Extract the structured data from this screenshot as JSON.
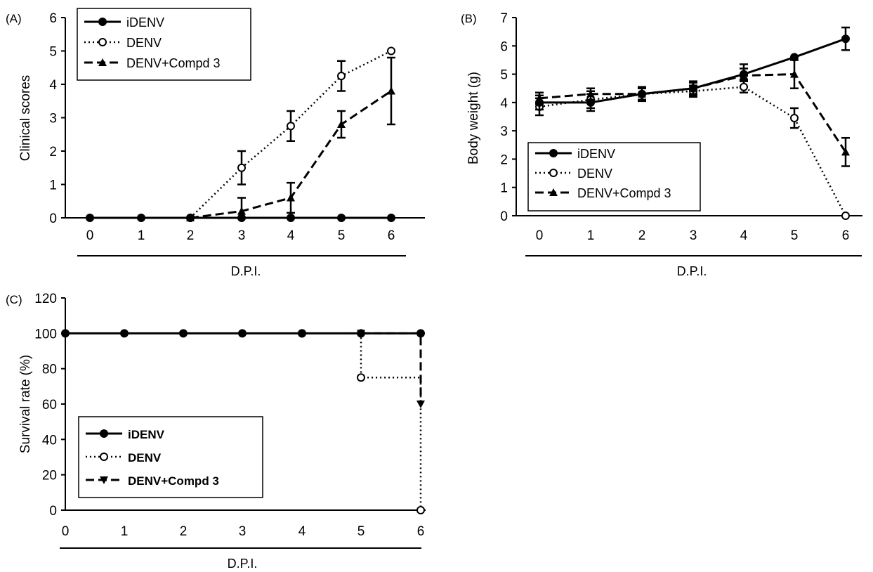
{
  "chart_data": [
    {
      "panel_label": "(A)",
      "type": "line",
      "ylabel": "Clinical scores",
      "xlabel": "D.P.I.",
      "ylim": [
        0,
        6
      ],
      "yticks": [
        "0",
        "1",
        "2",
        "3",
        "4",
        "5",
        "6"
      ],
      "x": [
        0,
        1,
        2,
        3,
        4,
        5,
        6
      ],
      "xticks": [
        "0",
        "1",
        "2",
        "3",
        "4",
        "5",
        "6"
      ],
      "legend_position": "top-left",
      "series": [
        {
          "name": "iDENV",
          "style": "solid",
          "marker": "filled-circle",
          "x": [
            0,
            1,
            2,
            3,
            4,
            5,
            6
          ],
          "values": [
            0,
            0,
            0,
            0,
            0,
            0,
            0
          ],
          "errors": [
            0,
            0,
            0,
            0,
            0,
            0,
            0
          ]
        },
        {
          "name": "DENV",
          "style": "dotted",
          "marker": "open-circle",
          "x": [
            2,
            3,
            4,
            5,
            6
          ],
          "values": [
            0,
            1.5,
            2.75,
            4.25,
            5.0
          ],
          "errors": [
            0,
            0.5,
            0.45,
            0.45,
            0
          ]
        },
        {
          "name": "DENV+Compd 3",
          "style": "dashed",
          "marker": "filled-triangle",
          "x": [
            2,
            3,
            4,
            5,
            6
          ],
          "values": [
            0,
            0.2,
            0.6,
            2.8,
            3.8
          ],
          "errors": [
            0,
            0.4,
            0.45,
            0.4,
            1.0
          ]
        }
      ]
    },
    {
      "panel_label": "(B)",
      "type": "line",
      "ylabel": "Body weight (g)",
      "xlabel": "D.P.I.",
      "ylim": [
        0,
        7
      ],
      "yticks": [
        "0",
        "1",
        "2",
        "3",
        "4",
        "5",
        "6",
        "7"
      ],
      "x": [
        0,
        1,
        2,
        3,
        4,
        5,
        6
      ],
      "xticks": [
        "0",
        "1",
        "2",
        "3",
        "4",
        "5",
        "6"
      ],
      "legend_position": "bottom-left",
      "series": [
        {
          "name": "iDENV",
          "style": "solid",
          "marker": "filled-circle",
          "x": [
            0,
            1,
            2,
            3,
            4,
            5,
            6
          ],
          "values": [
            4.0,
            4.0,
            4.3,
            4.5,
            5.0,
            5.6,
            6.25
          ],
          "errors": [
            0.25,
            0.3,
            0.2,
            0.2,
            0.2,
            0,
            0.4
          ]
        },
        {
          "name": "DENV",
          "style": "dotted",
          "marker": "open-circle",
          "x": [
            0,
            1,
            2,
            3,
            4,
            5,
            6
          ],
          "values": [
            3.85,
            4.1,
            4.3,
            4.4,
            4.55,
            3.45,
            0
          ],
          "errors": [
            0.3,
            0.3,
            0.2,
            0.2,
            0.2,
            0.35,
            0
          ]
        },
        {
          "name": "DENV+Compd 3",
          "style": "dashed",
          "marker": "filled-triangle",
          "x": [
            0,
            1,
            2,
            3,
            4,
            5,
            6
          ],
          "values": [
            4.15,
            4.3,
            4.3,
            4.5,
            4.95,
            5.0,
            2.25
          ],
          "errors": [
            0.2,
            0.2,
            0.25,
            0.25,
            0.4,
            0.5,
            0.5
          ]
        }
      ]
    },
    {
      "panel_label": "(C)",
      "type": "line",
      "ylabel": "Survival rate (%)",
      "xlabel": "D.P.I.",
      "ylim": [
        0,
        120
      ],
      "yticks": [
        "0",
        "20",
        "40",
        "60",
        "80",
        "100",
        "120"
      ],
      "x": [
        0,
        1,
        2,
        3,
        4,
        5,
        6
      ],
      "xticks": [
        "0",
        "1",
        "2",
        "3",
        "4",
        "5",
        "6"
      ],
      "legend_position": "bottom-left",
      "series": [
        {
          "name": "iDENV",
          "style": "solid",
          "marker": "filled-circle",
          "x": [
            0,
            1,
            2,
            3,
            4,
            5,
            6
          ],
          "values": [
            100,
            100,
            100,
            100,
            100,
            100,
            100
          ]
        },
        {
          "name": "DENV",
          "style": "dotted",
          "marker": "open-circle",
          "x": [
            4,
            5,
            6
          ],
          "values": [
            100,
            75,
            0
          ]
        },
        {
          "name": "DENV+Compd 3",
          "style": "dashed",
          "marker": "filled-inverted-triangle",
          "x": [
            5,
            6
          ],
          "values": [
            100,
            60
          ]
        }
      ]
    }
  ]
}
